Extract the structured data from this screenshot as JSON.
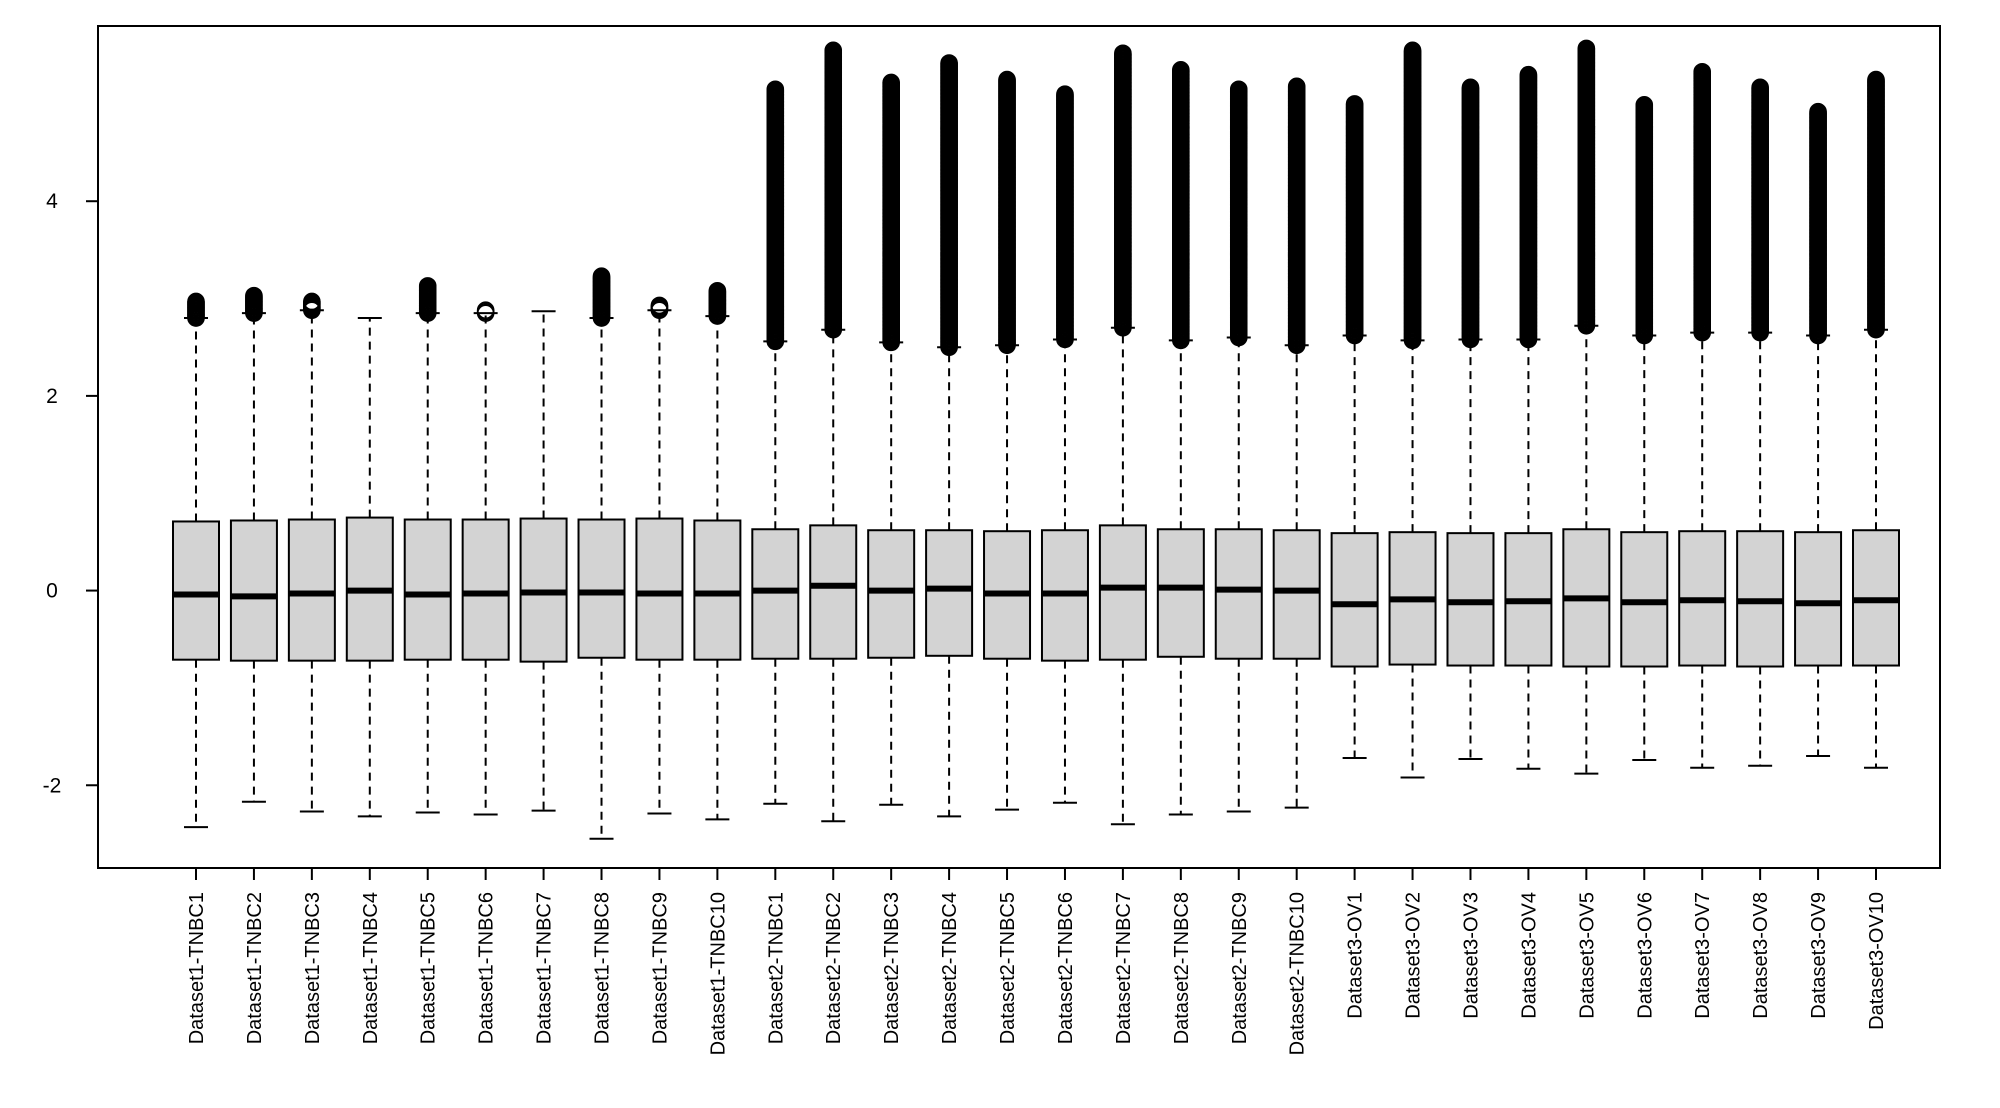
{
  "chart_data": {
    "type": "boxplot",
    "title": "",
    "xlabel": "",
    "ylabel": "",
    "ylim": [
      -2.85,
      5.8
    ],
    "y_ticks": [
      -2,
      0,
      2,
      4
    ],
    "y_tick_labels": [
      "-2",
      "0",
      "2",
      "4"
    ],
    "grid": false,
    "legend": "none",
    "box_fill": "#d3d3d3",
    "categories": [
      "Dataset1-TNBC1",
      "Dataset1-TNBC2",
      "Dataset1-TNBC3",
      "Dataset1-TNBC4",
      "Dataset1-TNBC5",
      "Dataset1-TNBC6",
      "Dataset1-TNBC7",
      "Dataset1-TNBC8",
      "Dataset1-TNBC9",
      "Dataset1-TNBC10",
      "Dataset2-TNBC1",
      "Dataset2-TNBC2",
      "Dataset2-TNBC3",
      "Dataset2-TNBC4",
      "Dataset2-TNBC5",
      "Dataset2-TNBC6",
      "Dataset2-TNBC7",
      "Dataset2-TNBC8",
      "Dataset2-TNBC9",
      "Dataset2-TNBC10",
      "Dataset3-OV1",
      "Dataset3-OV2",
      "Dataset3-OV3",
      "Dataset3-OV4",
      "Dataset3-OV5",
      "Dataset3-OV6",
      "Dataset3-OV7",
      "Dataset3-OV8",
      "Dataset3-OV9",
      "Dataset3-OV10"
    ],
    "boxes": [
      {
        "whisker_low": -2.43,
        "q1": -0.71,
        "median": -0.04,
        "q3": 0.71,
        "whisker_high": 2.8,
        "outlier_max": 2.97
      },
      {
        "whisker_low": -2.17,
        "q1": -0.72,
        "median": -0.06,
        "q3": 0.72,
        "whisker_high": 2.85,
        "outlier_max": 3.03
      },
      {
        "whisker_low": -2.27,
        "q1": -0.72,
        "median": -0.03,
        "q3": 0.73,
        "whisker_high": 2.88,
        "outlier_max": 2.97
      },
      {
        "whisker_low": -2.32,
        "q1": -0.72,
        "median": 0.0,
        "q3": 0.75,
        "whisker_high": 2.8,
        "outlier_max": 2.8
      },
      {
        "whisker_low": -2.28,
        "q1": -0.71,
        "median": -0.04,
        "q3": 0.73,
        "whisker_high": 2.85,
        "outlier_max": 3.13
      },
      {
        "whisker_low": -2.3,
        "q1": -0.71,
        "median": -0.03,
        "q3": 0.73,
        "whisker_high": 2.85,
        "outlier_max": 2.88
      },
      {
        "whisker_low": -2.26,
        "q1": -0.73,
        "median": -0.02,
        "q3": 0.74,
        "whisker_high": 2.87,
        "outlier_max": 2.87
      },
      {
        "whisker_low": -2.55,
        "q1": -0.69,
        "median": -0.02,
        "q3": 0.73,
        "whisker_high": 2.8,
        "outlier_max": 3.23
      },
      {
        "whisker_low": -2.29,
        "q1": -0.71,
        "median": -0.03,
        "q3": 0.74,
        "whisker_high": 2.88,
        "outlier_max": 2.93
      },
      {
        "whisker_low": -2.35,
        "q1": -0.71,
        "median": -0.03,
        "q3": 0.72,
        "whisker_high": 2.82,
        "outlier_max": 3.08
      },
      {
        "whisker_low": -2.19,
        "q1": -0.7,
        "median": 0.0,
        "q3": 0.63,
        "whisker_high": 2.56,
        "outlier_max": 5.15
      },
      {
        "whisker_low": -2.37,
        "q1": -0.7,
        "median": 0.05,
        "q3": 0.67,
        "whisker_high": 2.68,
        "outlier_max": 5.55
      },
      {
        "whisker_low": -2.2,
        "q1": -0.69,
        "median": 0.0,
        "q3": 0.62,
        "whisker_high": 2.55,
        "outlier_max": 5.22
      },
      {
        "whisker_low": -2.32,
        "q1": -0.67,
        "median": 0.02,
        "q3": 0.62,
        "whisker_high": 2.5,
        "outlier_max": 5.42
      },
      {
        "whisker_low": -2.25,
        "q1": -0.7,
        "median": -0.03,
        "q3": 0.61,
        "whisker_high": 2.52,
        "outlier_max": 5.25
      },
      {
        "whisker_low": -2.18,
        "q1": -0.72,
        "median": -0.03,
        "q3": 0.62,
        "whisker_high": 2.58,
        "outlier_max": 5.1
      },
      {
        "whisker_low": -2.4,
        "q1": -0.71,
        "median": 0.03,
        "q3": 0.67,
        "whisker_high": 2.7,
        "outlier_max": 5.52
      },
      {
        "whisker_low": -2.3,
        "q1": -0.68,
        "median": 0.03,
        "q3": 0.63,
        "whisker_high": 2.57,
        "outlier_max": 5.35
      },
      {
        "whisker_low": -2.27,
        "q1": -0.7,
        "median": 0.01,
        "q3": 0.63,
        "whisker_high": 2.6,
        "outlier_max": 5.15
      },
      {
        "whisker_low": -2.23,
        "q1": -0.7,
        "median": 0.0,
        "q3": 0.62,
        "whisker_high": 2.52,
        "outlier_max": 5.18
      },
      {
        "whisker_low": -1.72,
        "q1": -0.78,
        "median": -0.14,
        "q3": 0.59,
        "whisker_high": 2.62,
        "outlier_max": 5.0
      },
      {
        "whisker_low": -1.92,
        "q1": -0.76,
        "median": -0.09,
        "q3": 0.6,
        "whisker_high": 2.57,
        "outlier_max": 5.55
      },
      {
        "whisker_low": -1.73,
        "q1": -0.77,
        "median": -0.12,
        "q3": 0.59,
        "whisker_high": 2.58,
        "outlier_max": 5.17
      },
      {
        "whisker_low": -1.83,
        "q1": -0.77,
        "median": -0.11,
        "q3": 0.59,
        "whisker_high": 2.58,
        "outlier_max": 5.3
      },
      {
        "whisker_low": -1.88,
        "q1": -0.78,
        "median": -0.08,
        "q3": 0.63,
        "whisker_high": 2.72,
        "outlier_max": 5.57
      },
      {
        "whisker_low": -1.74,
        "q1": -0.78,
        "median": -0.12,
        "q3": 0.6,
        "whisker_high": 2.62,
        "outlier_max": 4.99
      },
      {
        "whisker_low": -1.82,
        "q1": -0.77,
        "median": -0.1,
        "q3": 0.61,
        "whisker_high": 2.65,
        "outlier_max": 5.33
      },
      {
        "whisker_low": -1.8,
        "q1": -0.78,
        "median": -0.11,
        "q3": 0.61,
        "whisker_high": 2.65,
        "outlier_max": 5.17
      },
      {
        "whisker_low": -1.7,
        "q1": -0.77,
        "median": -0.13,
        "q3": 0.6,
        "whisker_high": 2.62,
        "outlier_max": 4.92
      },
      {
        "whisker_low": -1.82,
        "q1": -0.77,
        "median": -0.1,
        "q3": 0.62,
        "whisker_high": 2.68,
        "outlier_max": 5.25
      }
    ]
  }
}
